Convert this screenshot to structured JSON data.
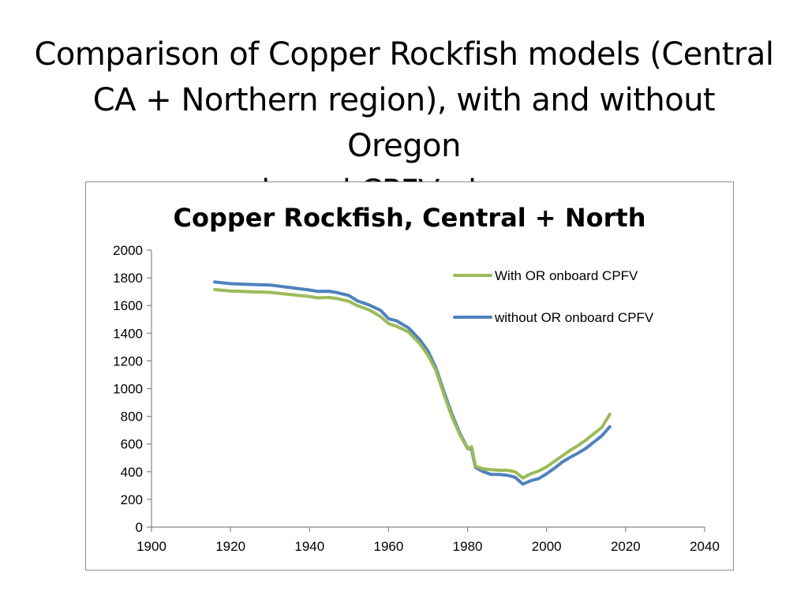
{
  "slide": {
    "title_lines": [
      "Comparison of Copper Rockfish models (Central",
      "CA + Northern region), with and without Oregon",
      "onboard CPFV observer"
    ]
  },
  "chart_data": {
    "type": "line",
    "title": "Copper Rockfish, Central + North",
    "xlabel": "",
    "ylabel": "",
    "xlim": [
      1900,
      2040
    ],
    "ylim": [
      0,
      2000
    ],
    "x_ticks": [
      1900,
      1920,
      1940,
      1960,
      1980,
      2000,
      2020,
      2040
    ],
    "y_ticks": [
      0,
      200,
      400,
      600,
      800,
      1000,
      1200,
      1400,
      1600,
      1800,
      2000
    ],
    "grid": false,
    "legend_position": "top-right",
    "series": [
      {
        "name": "With OR onboard CPFV",
        "color": "#9bbb59",
        "x": [
          1916,
          1920,
          1925,
          1930,
          1935,
          1940,
          1942,
          1945,
          1947,
          1950,
          1952,
          1955,
          1958,
          1960,
          1962,
          1965,
          1968,
          1970,
          1972,
          1974,
          1976,
          1978,
          1980,
          1981,
          1982,
          1984,
          1986,
          1988,
          1990,
          1992,
          1994,
          1996,
          1998,
          2000,
          2002,
          2004,
          2006,
          2008,
          2010,
          2012,
          2014,
          2016
        ],
        "y": [
          1715,
          1705,
          1700,
          1695,
          1680,
          1665,
          1655,
          1658,
          1650,
          1630,
          1600,
          1570,
          1520,
          1470,
          1450,
          1410,
          1320,
          1240,
          1130,
          960,
          800,
          670,
          565,
          580,
          440,
          420,
          415,
          410,
          410,
          400,
          355,
          385,
          405,
          435,
          475,
          515,
          555,
          590,
          630,
          675,
          720,
          815
        ]
      },
      {
        "name": "without OR onboard CPFV",
        "color": "#4f81bd",
        "x": [
          1916,
          1920,
          1925,
          1930,
          1935,
          1940,
          1942,
          1945,
          1947,
          1950,
          1952,
          1955,
          1958,
          1960,
          1962,
          1965,
          1968,
          1970,
          1972,
          1974,
          1976,
          1978,
          1980,
          1981,
          1982,
          1984,
          1986,
          1988,
          1990,
          1992,
          1994,
          1996,
          1998,
          2000,
          2002,
          2004,
          2006,
          2008,
          2010,
          2012,
          2014,
          2016
        ],
        "y": [
          1770,
          1758,
          1752,
          1748,
          1730,
          1712,
          1702,
          1703,
          1693,
          1672,
          1635,
          1605,
          1565,
          1505,
          1490,
          1440,
          1350,
          1270,
          1150,
          980,
          820,
          680,
          570,
          560,
          430,
          400,
          380,
          380,
          375,
          360,
          310,
          335,
          350,
          385,
          425,
          470,
          505,
          535,
          570,
          615,
          660,
          725
        ]
      }
    ]
  }
}
